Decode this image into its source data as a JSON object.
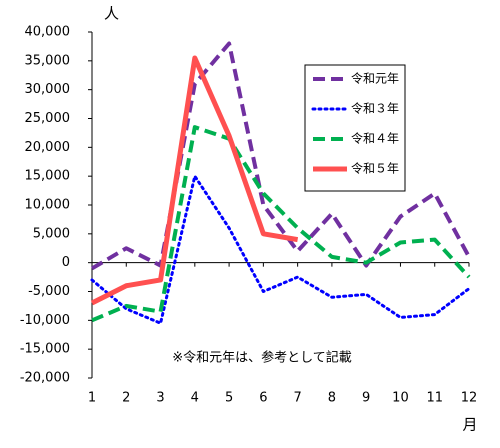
{
  "chart_data": {
    "type": "line",
    "y_unit": "人",
    "x_unit": "月",
    "annotation": "※令和元年は、参考として記載",
    "categories": [
      "1",
      "2",
      "3",
      "4",
      "5",
      "6",
      "7",
      "8",
      "9",
      "10",
      "11",
      "12"
    ],
    "ylim": [
      -20000,
      40000
    ],
    "yticks": [
      {
        "value": -20000,
        "label": "-20,000"
      },
      {
        "value": -15000,
        "label": "-15,000"
      },
      {
        "value": -10000,
        "label": "-10,000"
      },
      {
        "value": -5000,
        "label": "-5,000"
      },
      0,
      {
        "value": 5000,
        "label": "5,000"
      },
      {
        "value": 10000,
        "label": "10,000"
      },
      {
        "value": 15000,
        "label": "15,000"
      },
      {
        "value": 20000,
        "label": "20,000"
      },
      {
        "value": 25000,
        "label": "25,000"
      },
      {
        "value": 30000,
        "label": "30,000"
      },
      {
        "value": 35000,
        "label": "35,000"
      },
      {
        "value": 40000,
        "label": "40,000"
      }
    ],
    "grid": false,
    "legend": "upper right",
    "series": [
      {
        "name": "令和元年",
        "color": "#7030a0",
        "style": "dashed",
        "values": [
          -1000,
          2500,
          -500,
          31000,
          38000,
          10000,
          2000,
          8500,
          -500,
          8000,
          12000,
          1000
        ]
      },
      {
        "name": "令和３年",
        "color": "#0000ff",
        "style": "dotted",
        "values": [
          -3000,
          -8000,
          -10500,
          15000,
          6000,
          -5000,
          -2500,
          -6000,
          -5500,
          -9500,
          -9000,
          -4500
        ]
      },
      {
        "name": "令和４年",
        "color": "#00b050",
        "style": "dashed",
        "values": [
          -10000,
          -7500,
          -8500,
          23500,
          21500,
          12000,
          6000,
          1000,
          0,
          3500,
          4000,
          -2500
        ]
      },
      {
        "name": "令和５年",
        "color": "#ff5050",
        "style": "solid",
        "values": [
          -7000,
          -4000,
          -3000,
          35500,
          22000,
          5000,
          4000,
          null,
          null,
          null,
          null,
          null
        ]
      }
    ]
  }
}
